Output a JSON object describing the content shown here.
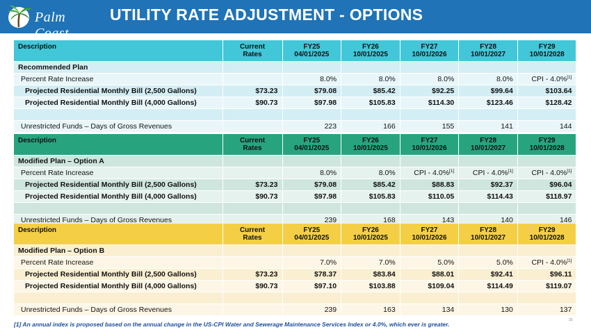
{
  "header": {
    "logo_text": "Palm Coast",
    "title": "UTILITY RATE ADJUSTMENT - OPTIONS"
  },
  "columns": {
    "desc": "Description",
    "current_line1": "Current",
    "current_line2": "Rates",
    "fy": [
      {
        "fy": "FY25",
        "date": "04/01/2025"
      },
      {
        "fy": "FY26",
        "date": "10/01/2025"
      },
      {
        "fy": "FY27",
        "date": "10/01/2026"
      },
      {
        "fy": "FY28",
        "date": "10/01/2027"
      },
      {
        "fy": "FY29",
        "date": "10/01/2028"
      }
    ]
  },
  "labels": {
    "pct": "Percent Rate Increase",
    "bill2500": "Projected Residential Monthly Bill (2,500 Gallons)",
    "bill4000": "Projected Residential Monthly Bill (4,000 Gallons)",
    "funds": "Unrestricted Funds – Days of Gross Revenues",
    "fn_mark": "[1]"
  },
  "plans": [
    {
      "name": "Recommended Plan",
      "pct": [
        "",
        "8.0%",
        "8.0%",
        "8.0%",
        "8.0%",
        "CPI - 4.0%"
      ],
      "pct_fn": [
        false,
        false,
        false,
        false,
        false,
        true
      ],
      "bill2500": [
        "$73.23",
        "$79.08",
        "$85.42",
        "$92.25",
        "$99.64",
        "$103.64"
      ],
      "bill4000": [
        "$90.73",
        "$97.98",
        "$105.83",
        "$114.30",
        "$123.46",
        "$128.42"
      ],
      "funds": [
        "",
        "223",
        "166",
        "155",
        "141",
        "144"
      ]
    },
    {
      "name": "Modified Plan – Option A",
      "pct": [
        "",
        "8.0%",
        "8.0%",
        "CPI - 4.0%",
        "CPI - 4.0%",
        "CPI - 4.0%"
      ],
      "pct_fn": [
        false,
        false,
        false,
        true,
        true,
        true
      ],
      "bill2500": [
        "$73.23",
        "$79.08",
        "$85.42",
        "$88.83",
        "$92.37",
        "$96.04"
      ],
      "bill4000": [
        "$90.73",
        "$97.98",
        "$105.83",
        "$110.05",
        "$114.43",
        "$118.97"
      ],
      "funds": [
        "",
        "239",
        "168",
        "143",
        "140",
        "146"
      ]
    },
    {
      "name": "Modified Plan – Option B",
      "pct": [
        "",
        "7.0%",
        "7.0%",
        "5.0%",
        "5.0%",
        "CPI - 4.0%"
      ],
      "pct_fn": [
        false,
        false,
        false,
        false,
        false,
        true
      ],
      "bill2500": [
        "$73.23",
        "$78.37",
        "$83.84",
        "$88.01",
        "$92.41",
        "$96.11"
      ],
      "bill4000": [
        "$90.73",
        "$97.10",
        "$103.88",
        "$109.04",
        "$114.49",
        "$119.07"
      ],
      "funds": [
        "",
        "239",
        "163",
        "134",
        "130",
        "137"
      ]
    }
  ],
  "footnote": "[1] An annual index is proposed based on the annual change in the US-CPI Water and Sewerage Maintenance Services Index or 4.0%, which ever is greater.",
  "page_number": "33"
}
